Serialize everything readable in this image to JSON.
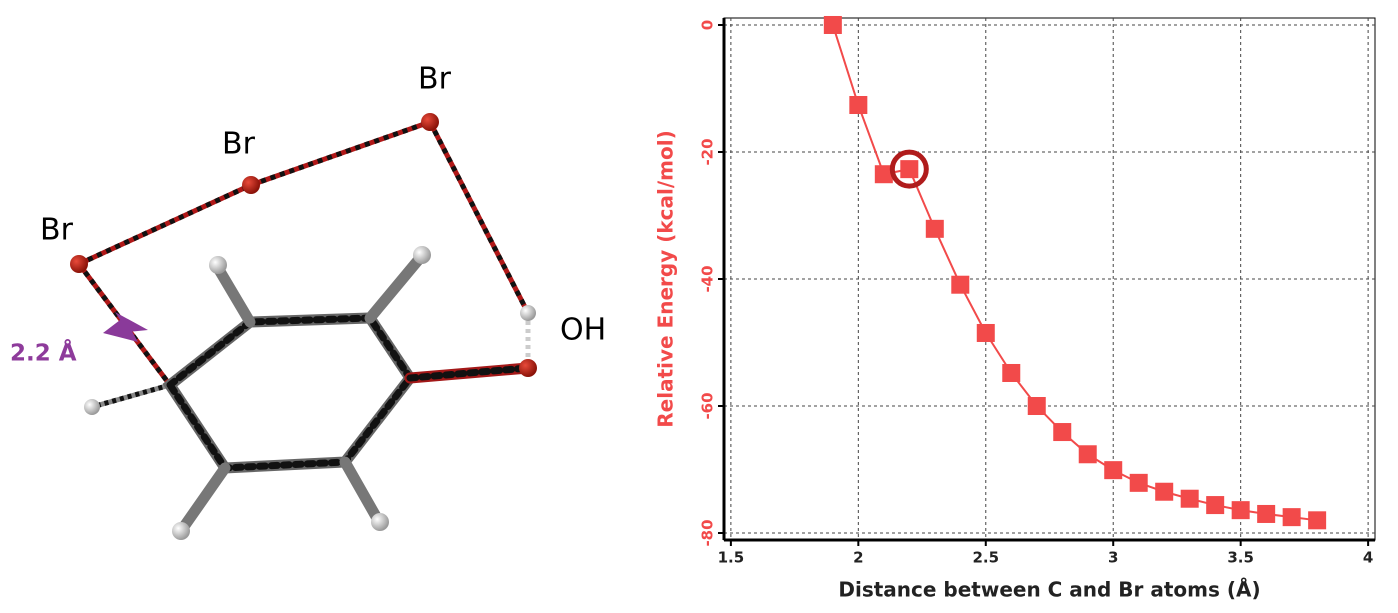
{
  "molecule": {
    "atom_labels": [
      "Br",
      "Br",
      "Br",
      "OH"
    ],
    "distance_label": "2.2 Å"
  },
  "chart_data": {
    "type": "line",
    "x_label": "Distance between C and Br atoms (Å)",
    "y_label": "Relative Energy (kcal/mol)",
    "x": [
      1.9,
      2.0,
      2.1,
      2.2,
      2.3,
      2.4,
      2.5,
      2.6,
      2.7,
      2.8,
      2.9,
      3.0,
      3.1,
      3.2,
      3.3,
      3.4,
      3.5,
      3.6,
      3.7,
      3.8
    ],
    "values": [
      0,
      -12.6,
      -23.5,
      -22.7,
      -32.1,
      -40.9,
      -48.5,
      -54.8,
      -60,
      -64.1,
      -67.6,
      -70.1,
      -72.1,
      -73.5,
      -74.6,
      -75.6,
      -76.4,
      -77,
      -77.5,
      -78
    ],
    "color": "#f24a4a",
    "highlight_index": 3,
    "highlight_color": "#b01c1c",
    "xlim": [
      1.473,
      4.027
    ],
    "xticks": [
      1.5,
      2,
      2.5,
      3,
      3.5,
      4
    ],
    "ylim": [
      -81.1,
      1.1
    ],
    "yticks": [
      0,
      -20,
      -40,
      -60,
      -80
    ],
    "grid": true
  }
}
